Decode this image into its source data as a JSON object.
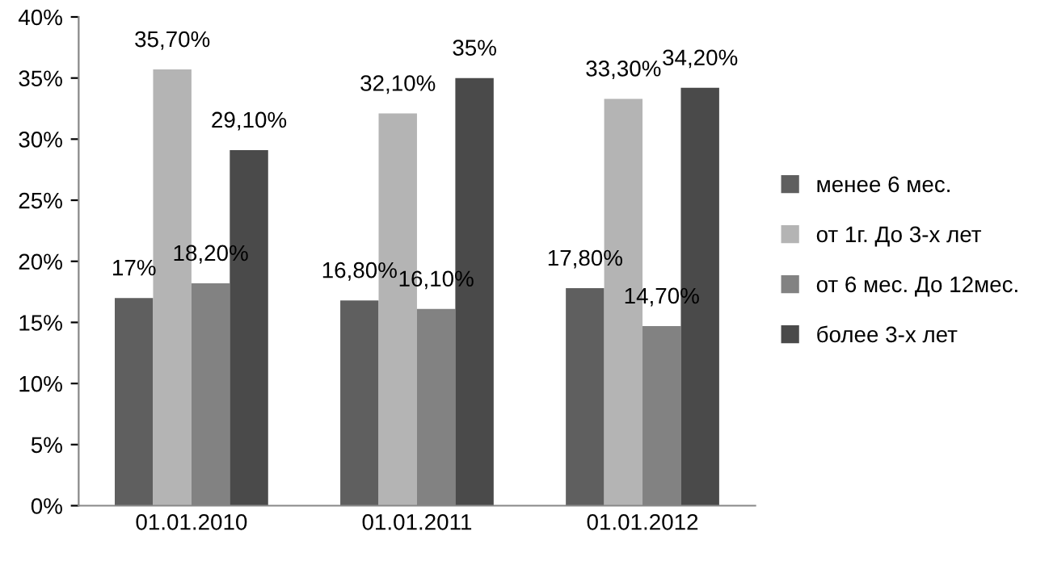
{
  "chart_data": {
    "type": "bar",
    "categories": [
      "01.01.2010",
      "01.01.2011",
      "01.01.2012"
    ],
    "series": [
      {
        "name": "менее 6 мес.",
        "color": "#5f5f5f",
        "values": [
          17,
          16.8,
          17.8
        ],
        "value_labels": [
          "17%",
          "16,80%",
          "17,80%"
        ]
      },
      {
        "name": "от 1г. До 3-х лет",
        "color": "#b4b4b4",
        "values": [
          35.7,
          32.1,
          33.3
        ],
        "value_labels": [
          "35,70%",
          "32,10%",
          "33,30%"
        ]
      },
      {
        "name": "от 6 мес. До 12мес.",
        "color": "#828282",
        "values": [
          18.2,
          16.1,
          14.7
        ],
        "value_labels": [
          "18,20%",
          "16,10%",
          "14,70%"
        ]
      },
      {
        "name": "более 3-х лет",
        "color": "#4a4a4a",
        "values": [
          29.1,
          35,
          34.2
        ],
        "value_labels": [
          "29,10%",
          "35%",
          "34,20%"
        ]
      }
    ],
    "ylim": [
      0,
      40
    ],
    "yticks": [
      {
        "value": 0,
        "label": "0%"
      },
      {
        "value": 5,
        "label": "5%"
      },
      {
        "value": 10,
        "label": "10%"
      },
      {
        "value": 15,
        "label": "15%"
      },
      {
        "value": 20,
        "label": "20%"
      },
      {
        "value": 25,
        "label": "25%"
      },
      {
        "value": 30,
        "label": "30%"
      },
      {
        "value": 35,
        "label": "35%"
      },
      {
        "value": 40,
        "label": "40%"
      }
    ],
    "grid": false,
    "legend": "right"
  }
}
